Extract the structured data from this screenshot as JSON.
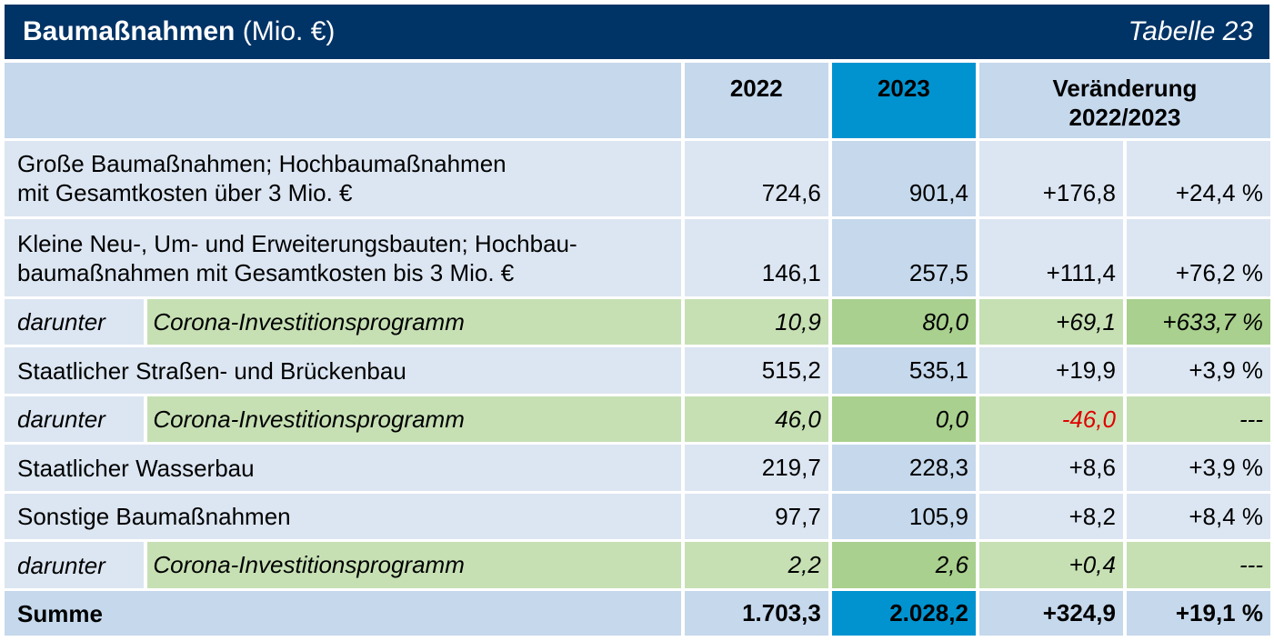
{
  "header": {
    "title_bold": "Baumaßnahmen",
    "title_rest": " (Mio. €)",
    "table_number": "Tabelle 23"
  },
  "columns": {
    "year1": "2022",
    "year2": "2023",
    "change_line1": "Veränderung",
    "change_line2": "2022/2023"
  },
  "rows": [
    {
      "label1": "Große Baumaßnahmen; Hochbaumaßnahmen",
      "label2": "mit Gesamtkosten über 3 Mio. €",
      "v2022": "724,6",
      "v2023": "901,4",
      "abs": "+176,8",
      "pct": "+24,4 %"
    },
    {
      "label1": "Kleine Neu-, Um- und Erweiterungsbauten; Hochbau-",
      "label2": "baumaßnahmen mit Gesamtkosten bis 3 Mio. €",
      "v2022": "146,1",
      "v2023": "257,5",
      "abs": "+111,4",
      "pct": "+76,2 %"
    },
    {
      "prefix": "darunter",
      "label": "Corona-Investitionsprogramm",
      "v2022": "10,9",
      "v2023": "80,0",
      "abs": "+69,1",
      "pct": "+633,7 %"
    },
    {
      "label": "Staatlicher Straßen- und Brückenbau",
      "v2022": "515,2",
      "v2023": "535,1",
      "abs": "+19,9",
      "pct": "+3,9 %"
    },
    {
      "prefix": "darunter",
      "label": "Corona-Investitionsprogramm",
      "v2022": "46,0",
      "v2023": "0,0",
      "abs": "-46,0",
      "pct": "---"
    },
    {
      "label": "Staatlicher Wasserbau",
      "v2022": "219,7",
      "v2023": "228,3",
      "abs": "+8,6",
      "pct": "+3,9 %"
    },
    {
      "label": "Sonstige Baumaßnahmen",
      "v2022": "97,7",
      "v2023": "105,9",
      "abs": "+8,2",
      "pct": "+8,4 %"
    },
    {
      "prefix": "darunter",
      "label": "Corona-Investitionsprogramm",
      "v2022": "2,2",
      "v2023": "2,6",
      "abs": "+0,4",
      "pct": "---"
    }
  ],
  "total": {
    "label": "Summe",
    "v2022": "1.703,3",
    "v2023": "2.028,2",
    "abs": "+324,9",
    "pct": "+19,1 %"
  },
  "colors": {
    "title_bg": "#003366",
    "highlight_2023": "#0093d0",
    "negative": "#e00000"
  }
}
